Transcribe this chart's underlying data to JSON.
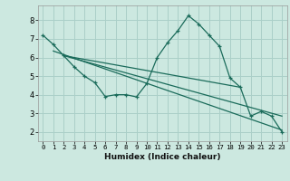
{
  "title": "",
  "xlabel": "Humidex (Indice chaleur)",
  "background_color": "#cce8e0",
  "grid_color": "#aacfc8",
  "line_color": "#1a6b5a",
  "xlim": [
    -0.5,
    23.5
  ],
  "ylim": [
    1.5,
    8.8
  ],
  "yticks": [
    2,
    3,
    4,
    5,
    6,
    7,
    8
  ],
  "xticks": [
    0,
    1,
    2,
    3,
    4,
    5,
    6,
    7,
    8,
    9,
    10,
    11,
    12,
    13,
    14,
    15,
    16,
    17,
    18,
    19,
    20,
    21,
    22,
    23
  ],
  "series1_x": [
    0,
    1,
    2,
    3,
    4,
    5,
    6,
    7,
    8,
    9,
    10,
    11,
    12,
    13,
    14,
    15,
    16,
    17,
    18,
    19,
    20,
    21,
    22,
    23
  ],
  "series1_y": [
    7.2,
    6.7,
    6.1,
    5.5,
    5.0,
    4.65,
    3.9,
    4.0,
    4.0,
    3.88,
    4.6,
    6.0,
    6.8,
    7.45,
    8.25,
    7.8,
    7.2,
    6.6,
    4.9,
    4.4,
    2.85,
    3.1,
    2.85,
    2.0
  ],
  "series2_x": [
    1,
    23
  ],
  "series2_y": [
    6.35,
    2.1
  ],
  "series3_x": [
    2,
    23
  ],
  "series3_y": [
    6.1,
    2.85
  ],
  "series4_x": [
    2,
    19
  ],
  "series4_y": [
    6.1,
    4.4
  ]
}
